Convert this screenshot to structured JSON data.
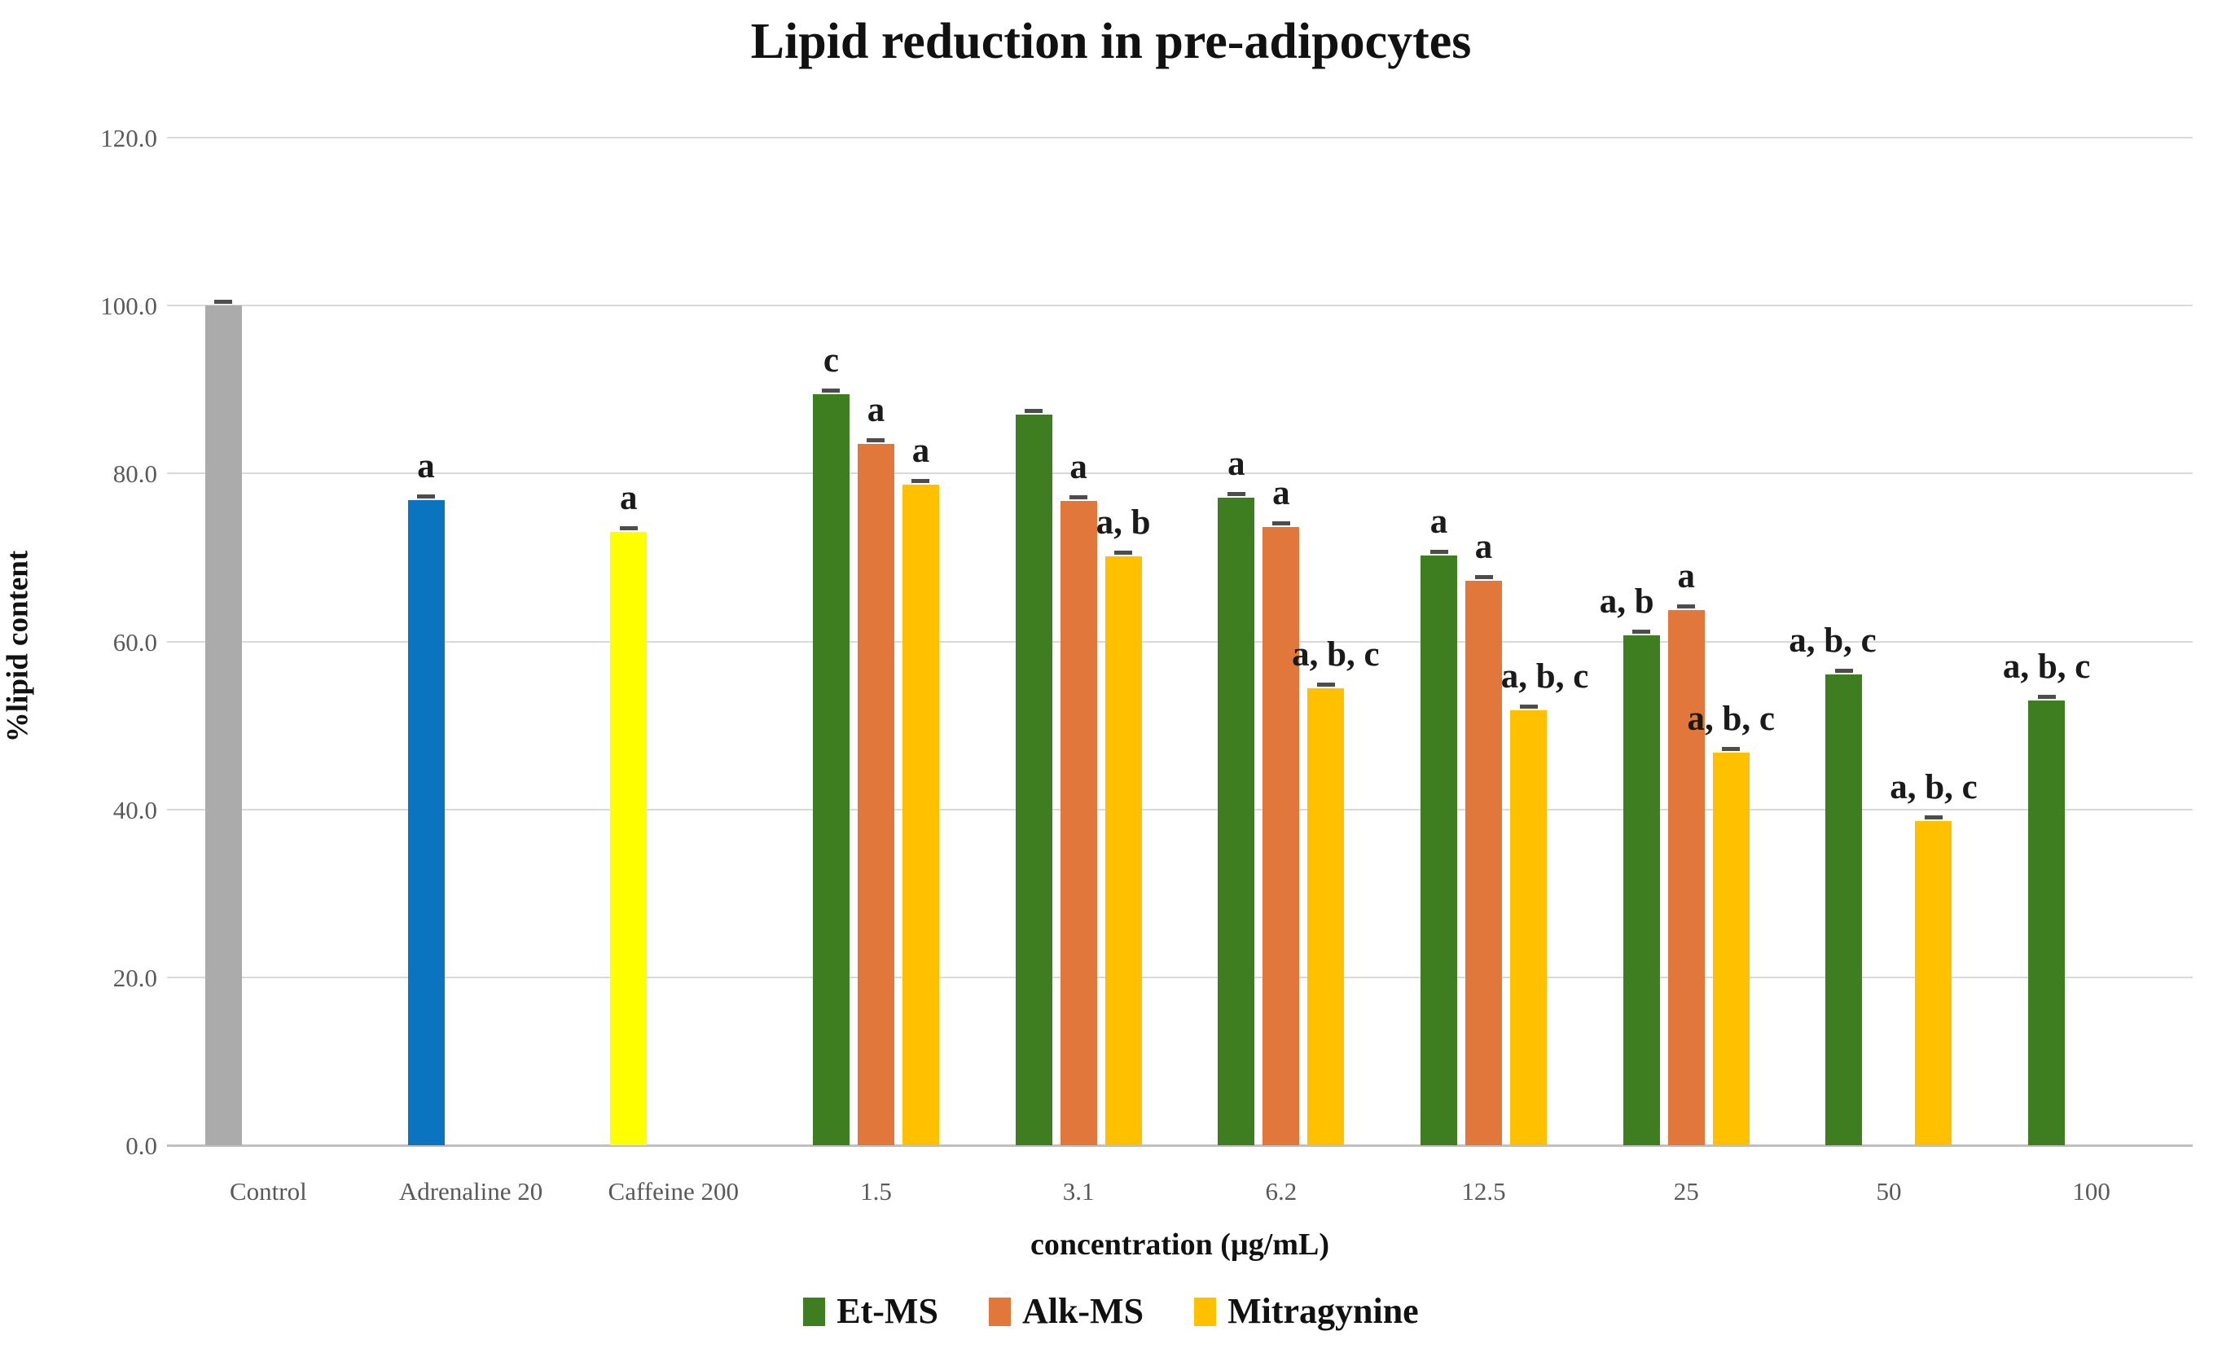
{
  "chart_data": {
    "type": "bar",
    "title": "Lipid reduction in pre-adipocytes",
    "xlabel": "concentration (µg/mL)",
    "ylabel": "%lipid content",
    "ylim": [
      0,
      120
    ],
    "ytick_interval": 20,
    "ytick_labels": [
      "0.0",
      "20.0",
      "40.0",
      "60.0",
      "80.0",
      "100.0",
      "120.0"
    ],
    "grid": true,
    "gridline_color": "#d9d9d9",
    "axis_line_color": "#bfbfbf",
    "error_cap_color": "#4d4d4d",
    "legend_position": "bottom",
    "legend": [
      {
        "name": "Et-MS",
        "color": "#3E7D20"
      },
      {
        "name": "Alk-MS",
        "color": "#E1773B"
      },
      {
        "name": "Mitragynine",
        "color": "#FFC000"
      }
    ],
    "categories": [
      "Control",
      "Adrenaline 20",
      "Caffeine 200",
      "1.5",
      "3.1",
      "6.2",
      "12.5",
      "25",
      "50",
      "100"
    ],
    "columns": [
      {
        "category": "Control",
        "bars": [
          {
            "slot": 0,
            "series": "Control",
            "color": "#ABABAB",
            "value": 100.0,
            "annotation": ""
          }
        ]
      },
      {
        "category": "Adrenaline 20",
        "bars": [
          {
            "slot": 0,
            "series": "Adrenaline 20",
            "color": "#0B74C0",
            "value": 76.8,
            "annotation": "a"
          }
        ]
      },
      {
        "category": "Caffeine 200",
        "bars": [
          {
            "slot": 0,
            "series": "Caffeine 200",
            "color": "#FFFF00",
            "value": 73.0,
            "annotation": "a"
          }
        ]
      },
      {
        "category": "1.5",
        "bars": [
          {
            "slot": 0,
            "series": "Et-MS",
            "color": "#3E7D20",
            "value": 89.4,
            "annotation": "c"
          },
          {
            "slot": 1,
            "series": "Alk-MS",
            "color": "#E1773B",
            "value": 83.5,
            "annotation": "a"
          },
          {
            "slot": 2,
            "series": "Mitragynine",
            "color": "#FFC000",
            "value": 78.7,
            "annotation": "a"
          }
        ]
      },
      {
        "category": "3.1",
        "bars": [
          {
            "slot": 0,
            "series": "Et-MS",
            "color": "#3E7D20",
            "value": 87.0,
            "annotation": ""
          },
          {
            "slot": 1,
            "series": "Alk-MS",
            "color": "#E1773B",
            "value": 76.7,
            "annotation": "a"
          },
          {
            "slot": 2,
            "series": "Mitragynine",
            "color": "#FFC000",
            "value": 70.1,
            "annotation": "a, b"
          }
        ]
      },
      {
        "category": "6.2",
        "bars": [
          {
            "slot": 0,
            "series": "Et-MS",
            "color": "#3E7D20",
            "value": 77.1,
            "annotation": "a"
          },
          {
            "slot": 1,
            "series": "Alk-MS",
            "color": "#E1773B",
            "value": 73.6,
            "annotation": "a"
          },
          {
            "slot": 2,
            "series": "Mitragynine",
            "color": "#FFC000",
            "value": 54.4,
            "annotation": "a, b, c",
            "ann_dx": 12
          }
        ]
      },
      {
        "category": "12.5",
        "bars": [
          {
            "slot": 0,
            "series": "Et-MS",
            "color": "#3E7D20",
            "value": 70.2,
            "annotation": "a"
          },
          {
            "slot": 1,
            "series": "Alk-MS",
            "color": "#E1773B",
            "value": 67.2,
            "annotation": "a"
          },
          {
            "slot": 2,
            "series": "Mitragynine",
            "color": "#FFC000",
            "value": 51.8,
            "annotation": "a, b, c",
            "ann_dx": 20
          }
        ]
      },
      {
        "category": "25",
        "bars": [
          {
            "slot": 0,
            "series": "Et-MS",
            "color": "#3E7D20",
            "value": 60.7,
            "annotation": "a, b",
            "ann_dx": -18
          },
          {
            "slot": 1,
            "series": "Alk-MS",
            "color": "#E1773B",
            "value": 63.7,
            "annotation": "a"
          },
          {
            "slot": 2,
            "series": "Mitragynine",
            "color": "#FFC000",
            "value": 46.8,
            "annotation": "a, b, c"
          }
        ]
      },
      {
        "category": "50",
        "bars": [
          {
            "slot": 0,
            "series": "Et-MS",
            "color": "#3E7D20",
            "value": 56.1,
            "annotation": "a, b, c",
            "ann_dx": -14
          },
          {
            "slot": 2,
            "series": "Mitragynine",
            "color": "#FFC000",
            "value": 38.6,
            "annotation": "a, b, c"
          }
        ]
      },
      {
        "category": "100",
        "bars": [
          {
            "slot": 0,
            "series": "Et-MS",
            "color": "#3E7D20",
            "value": 53.0,
            "annotation": "a, b, c"
          }
        ]
      }
    ]
  }
}
